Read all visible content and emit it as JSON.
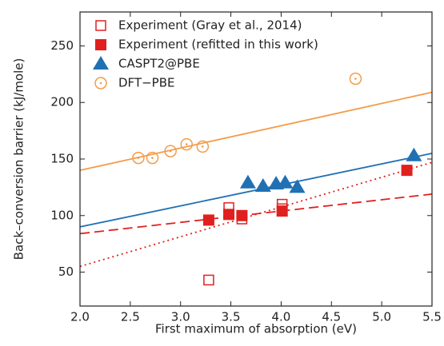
{
  "chart_data": {
    "type": "scatter",
    "xlabel": "First maximum of absorption (eV)",
    "ylabel": "Back–conversion barrier (kJ/mole)",
    "xlim": [
      2.0,
      5.5
    ],
    "ylim": [
      20,
      280
    ],
    "xticks": [
      {
        "value": 2.0,
        "label": "2.0"
      },
      {
        "value": 2.5,
        "label": "2.5"
      },
      {
        "value": 3.0,
        "label": "3.0"
      },
      {
        "value": 3.5,
        "label": "3.5"
      },
      {
        "value": 4.0,
        "label": "4.0"
      },
      {
        "value": 4.5,
        "label": "4.5"
      },
      {
        "value": 5.0,
        "label": "5.0"
      },
      {
        "value": 5.5,
        "label": "5.5"
      }
    ],
    "yticks": [
      50,
      100,
      150,
      200,
      250
    ],
    "legend": "upper left",
    "series": [
      {
        "name": "Experiment (Gray et al., 2014)",
        "color": "#e0201e",
        "marker": "open-square",
        "x": [
          3.28,
          3.48,
          3.61,
          4.01,
          4.01
        ],
        "values": [
          43,
          107,
          97,
          110,
          106
        ]
      },
      {
        "name": "Experiment (refitted in this work)",
        "color": "#e0201e",
        "marker": "square",
        "x": [
          3.28,
          3.48,
          3.61,
          4.01,
          5.25
        ],
        "values": [
          96,
          101,
          100,
          104,
          140
        ]
      },
      {
        "name": "CASPT2@PBE",
        "color": "#2070b4",
        "marker": "triangle",
        "x": [
          3.67,
          3.82,
          3.95,
          4.04,
          4.16,
          5.32
        ],
        "values": [
          129,
          126,
          128,
          129,
          125,
          153
        ]
      },
      {
        "name": "DFT−PBE",
        "color": "#f39c4a",
        "marker": "dot-circle",
        "x": [
          2.58,
          2.72,
          2.9,
          3.06,
          3.22,
          4.74
        ],
        "values": [
          151,
          151,
          157,
          163,
          161,
          221
        ]
      }
    ],
    "fit_lines": [
      {
        "color": "#f39c4a",
        "dash": "solid",
        "x": [
          2.0,
          5.5
        ],
        "values": [
          140,
          209
        ]
      },
      {
        "color": "#2070b4",
        "dash": "solid",
        "x": [
          2.0,
          5.5
        ],
        "values": [
          90,
          155
        ]
      },
      {
        "color": "#e0201e",
        "dash": "dashed",
        "x": [
          2.0,
          5.5
        ],
        "values": [
          84,
          119
        ]
      },
      {
        "color": "#e0201e",
        "dash": "dotted",
        "x": [
          2.0,
          5.5
        ],
        "values": [
          55,
          147
        ]
      }
    ]
  }
}
